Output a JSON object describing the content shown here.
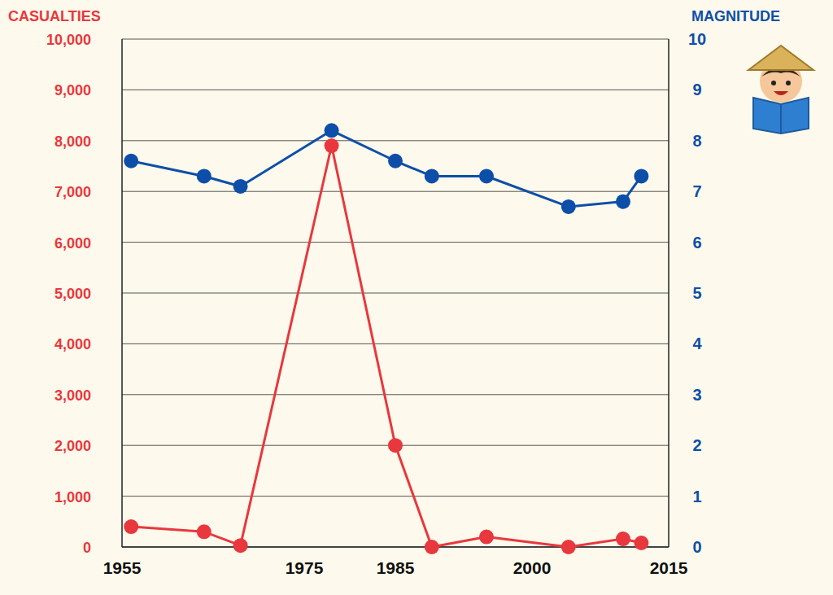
{
  "chart_data": {
    "type": "line",
    "x": [
      1956,
      1964,
      1968,
      1978,
      1985,
      1989,
      1995,
      2004,
      2010,
      2012
    ],
    "xlim": [
      1955,
      2015
    ],
    "xticks": [
      1955,
      1975,
      1985,
      2000,
      2015
    ],
    "ylim": [
      0,
      10000
    ],
    "yticks": [
      0,
      {
        "value": 1000,
        "label": "1,000"
      },
      {
        "value": 2000,
        "label": "2,000"
      },
      {
        "value": 3000,
        "label": "3,000"
      },
      {
        "value": 4000,
        "label": "4,000"
      },
      {
        "value": 5000,
        "label": "5,000"
      },
      {
        "value": 6000,
        "label": "6,000"
      },
      {
        "value": 7000,
        "label": "7,000"
      },
      {
        "value": 8000,
        "label": "8,000"
      },
      {
        "value": 9000,
        "label": "9,000"
      },
      {
        "value": 10000,
        "label": "10,000"
      }
    ],
    "y2lim": [
      0,
      10
    ],
    "y2ticks": [
      0,
      1,
      2,
      3,
      4,
      5,
      6,
      7,
      8,
      9,
      10
    ],
    "grid": true,
    "series": [
      {
        "name": "CASUALTIES",
        "color": "#e8383d",
        "marker": "circle",
        "values": [
          400,
          300,
          30,
          7900,
          2000,
          0,
          200,
          0,
          160,
          80
        ]
      },
      {
        "name": "MAGNITUDE",
        "color": "#0d4fa8",
        "marker": "circle",
        "axis": "y2",
        "values": [
          7.6,
          7.3,
          7.1,
          8.2,
          7.6,
          7.3,
          7.3,
          6.7,
          6.8,
          7.3
        ]
      }
    ]
  }
}
